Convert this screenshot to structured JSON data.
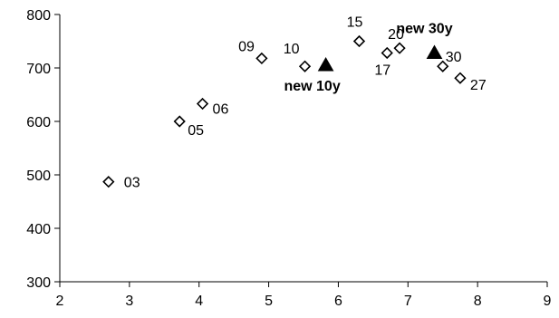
{
  "chart_data": {
    "type": "scatter",
    "title": "",
    "xlabel": "",
    "ylabel": "",
    "xlim": [
      2,
      9
    ],
    "ylim": [
      300,
      800
    ],
    "xticks": [
      2,
      3,
      4,
      5,
      6,
      7,
      8,
      9
    ],
    "yticks": [
      300,
      400,
      500,
      600,
      700,
      800
    ],
    "grid": false,
    "legend": "none",
    "series": [
      {
        "marker": "diamond-open",
        "color": "#000000",
        "points": [
          {
            "x": 2.7,
            "y": 487,
            "label": "03"
          },
          {
            "x": 3.72,
            "y": 600,
            "label": "05"
          },
          {
            "x": 4.05,
            "y": 633,
            "label": "06"
          },
          {
            "x": 4.9,
            "y": 718,
            "label": "09"
          },
          {
            "x": 5.52,
            "y": 703,
            "label": "10"
          },
          {
            "x": 6.3,
            "y": 750,
            "label": "15"
          },
          {
            "x": 6.7,
            "y": 728,
            "label": "17"
          },
          {
            "x": 6.88,
            "y": 737,
            "label": "20"
          },
          {
            "x": 7.5,
            "y": 703,
            "label": "30"
          },
          {
            "x": 7.75,
            "y": 681,
            "label": "27"
          }
        ]
      },
      {
        "marker": "triangle-filled",
        "color": "#000000",
        "points": [
          {
            "x": 5.82,
            "y": 705,
            "label": "new 10y"
          },
          {
            "x": 7.38,
            "y": 728,
            "label": "new 30y"
          }
        ]
      }
    ]
  }
}
